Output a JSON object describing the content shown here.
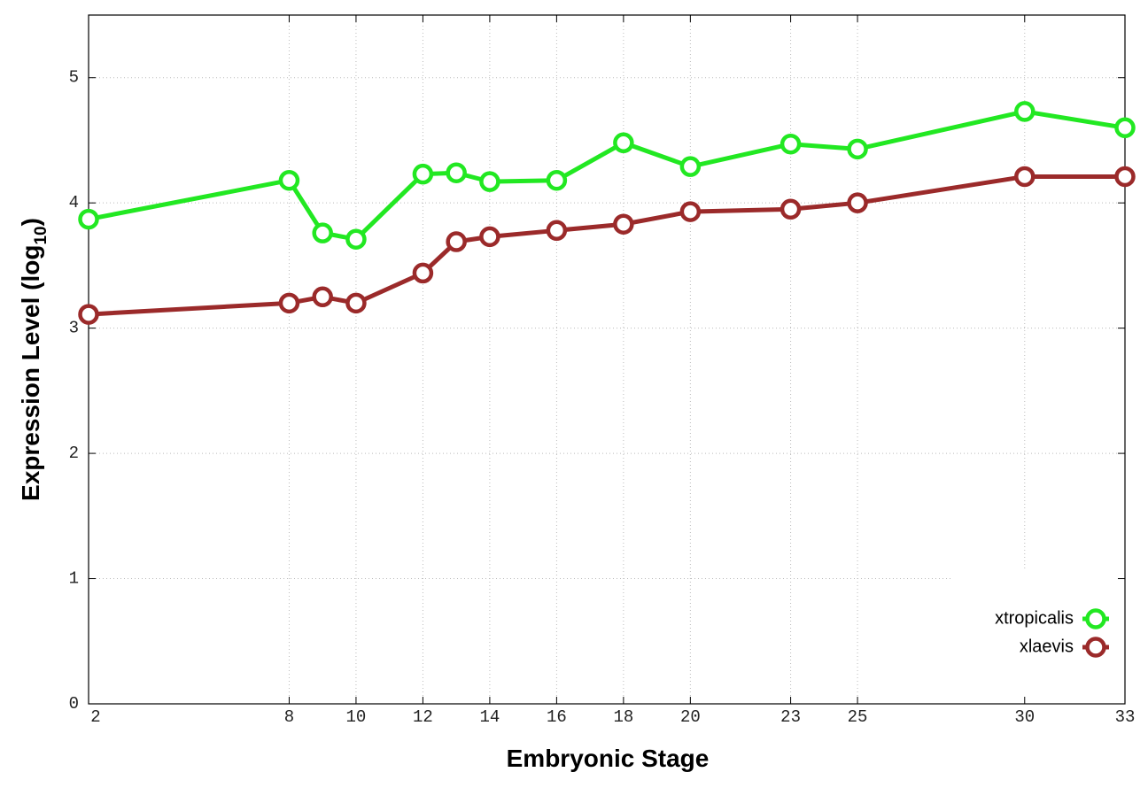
{
  "chart_data": {
    "type": "line",
    "xlabel": "Embryonic Stage",
    "ylabel": [
      "Expression Level (log",
      "10",
      ")"
    ],
    "x": [
      2,
      8,
      9,
      10,
      12,
      13,
      14,
      16,
      18,
      20,
      23,
      25,
      30,
      33
    ],
    "series": [
      {
        "name": "xtropicalis",
        "color": "#22e822",
        "values": [
          3.87,
          4.18,
          3.76,
          3.71,
          4.23,
          4.24,
          4.17,
          4.18,
          4.48,
          4.29,
          4.47,
          4.43,
          4.73,
          4.6
        ]
      },
      {
        "name": "xlaevis",
        "color": "#9b2a2a",
        "values": [
          3.11,
          3.2,
          3.25,
          3.2,
          3.44,
          3.69,
          3.73,
          3.78,
          3.83,
          3.93,
          3.95,
          4.0,
          4.21,
          4.21
        ]
      }
    ],
    "xlim": [
      2,
      33
    ],
    "xticks": [
      2,
      8,
      10,
      12,
      14,
      16,
      18,
      20,
      23,
      25,
      30,
      33
    ],
    "ylim": [
      0,
      5.5
    ],
    "yticks": [
      0,
      1,
      2,
      3,
      4,
      5
    ],
    "grid": true,
    "legend": "lower right"
  }
}
